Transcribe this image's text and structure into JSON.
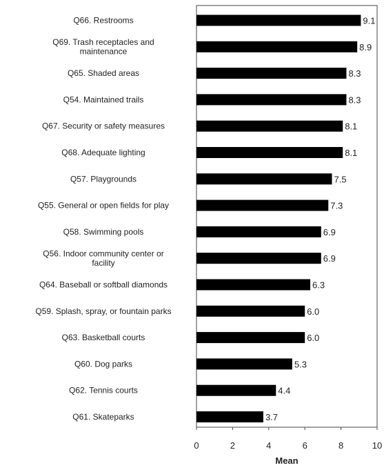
{
  "chart_data": {
    "type": "bar",
    "orientation": "horizontal",
    "title": "",
    "xlabel": "Mean",
    "ylabel": "",
    "xlim": [
      0,
      10
    ],
    "xticks": [
      0,
      2,
      4,
      6,
      8,
      10
    ],
    "grid": false,
    "legend": "none",
    "bar_color": "#000000",
    "categories": [
      [
        "Q66. Restrooms"
      ],
      [
        "Q69. Trash receptacles and",
        "maintenance"
      ],
      [
        "Q65. Shaded areas"
      ],
      [
        "Q54. Maintained trails"
      ],
      [
        "Q67. Security or safety measures"
      ],
      [
        "Q68. Adequate lighting"
      ],
      [
        "Q57. Playgrounds"
      ],
      [
        "Q55. General or open fields for play"
      ],
      [
        "Q58. Swimming pools"
      ],
      [
        "Q56. Indoor community center or",
        "facility"
      ],
      [
        "Q64. Baseball or softball diamonds"
      ],
      [
        "Q59. Splash, spray, or fountain parks"
      ],
      [
        "Q63. Basketball courts"
      ],
      [
        "Q60. Dog parks"
      ],
      [
        "Q62. Tennis courts"
      ],
      [
        "Q61. Skateparks"
      ]
    ],
    "values": [
      9.1,
      8.9,
      8.3,
      8.3,
      8.1,
      8.1,
      7.5,
      7.3,
      6.9,
      6.9,
      6.3,
      6.0,
      6.0,
      5.3,
      4.4,
      3.7
    ],
    "value_labels": [
      "9.1",
      "8.9",
      "8.3",
      "8.3",
      "8.1",
      "8.1",
      "7.5",
      "7.3",
      "6.9",
      "6.9",
      "6.3",
      "6.0",
      "6.0",
      "5.3",
      "4.4",
      "3.7"
    ]
  }
}
